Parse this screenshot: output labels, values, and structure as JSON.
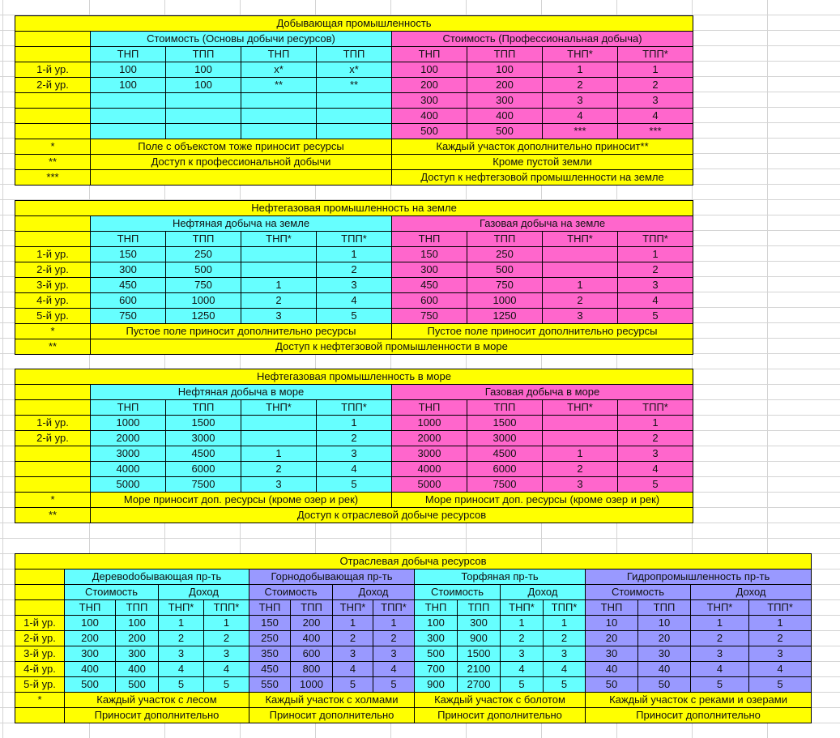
{
  "colors": {
    "yellow": "#ffff00",
    "cyan": "#66ffff",
    "pink": "#ff66cc",
    "purple": "#9999ff"
  },
  "tables": [
    {
      "title": "Добывающая промышленность",
      "row_labels": [
        "1-й ур.",
        "2-й ур.",
        "",
        "",
        ""
      ],
      "sections": [
        {
          "title": "Стоимость (Основы добычи ресурсов)",
          "color": "cyan",
          "columns": [
            "ТНП",
            "ТПП",
            "ТНП",
            "ТПП"
          ],
          "rows": [
            [
              "100",
              "100",
              "x*",
              "x*"
            ],
            [
              "100",
              "100",
              "**",
              "**"
            ],
            [
              "",
              "",
              "",
              ""
            ],
            [
              "",
              "",
              "",
              ""
            ],
            [
              "",
              "",
              "",
              ""
            ]
          ]
        },
        {
          "title": "Стоимость (Профессиональная добыча)",
          "color": "pink",
          "columns": [
            "ТНП",
            "ТПП",
            "ТНП*",
            "ТПП*"
          ],
          "rows": [
            [
              "100",
              "100",
              "1",
              "1"
            ],
            [
              "200",
              "200",
              "2",
              "2"
            ],
            [
              "300",
              "300",
              "3",
              "3"
            ],
            [
              "400",
              "400",
              "4",
              "4"
            ],
            [
              "500",
              "500",
              "***",
              "***"
            ]
          ]
        }
      ],
      "notes": [
        {
          "marker": "*",
          "texts": [
            "Поле с объекстом тоже приносит ресурсы",
            "Каждый участок дополнительно приносит**"
          ]
        },
        {
          "marker": "**",
          "texts": [
            "Доступ к профессиональной добычи",
            "Кроме пустой земли"
          ]
        },
        {
          "marker": "***",
          "texts": [
            "",
            "Доступ к нефтегзовой промышленности на земле"
          ]
        }
      ]
    },
    {
      "title": "Нефтегазовая промышленность на земле",
      "row_labels": [
        "1-й ур.",
        "2-й ур.",
        "3-й ур.",
        "4-й ур.",
        "5-й ур."
      ],
      "sections": [
        {
          "title": "Нефтяная добыча на земле",
          "color": "cyan",
          "columns": [
            "ТНП",
            "ТПП",
            "ТНП*",
            "ТПП*"
          ],
          "rows": [
            [
              "150",
              "250",
              "",
              "1"
            ],
            [
              "300",
              "500",
              "",
              "2"
            ],
            [
              "450",
              "750",
              "1",
              "3"
            ],
            [
              "600",
              "1000",
              "2",
              "4"
            ],
            [
              "750",
              "1250",
              "3",
              "5"
            ]
          ]
        },
        {
          "title": "Газовая добыча на земле",
          "color": "pink",
          "columns": [
            "ТНП",
            "ТПП",
            "ТНП*",
            "ТПП*"
          ],
          "rows": [
            [
              "150",
              "250",
              "",
              "1"
            ],
            [
              "300",
              "500",
              "",
              "2"
            ],
            [
              "450",
              "750",
              "1",
              "3"
            ],
            [
              "600",
              "1000",
              "2",
              "4"
            ],
            [
              "750",
              "1250",
              "3",
              "5"
            ]
          ]
        }
      ],
      "notes": [
        {
          "marker": "*",
          "texts": [
            "Пустое поле приносит дополнительно ресурсы",
            "Пустое поле приносит дополнительно ресурсы"
          ]
        },
        {
          "marker": "**",
          "texts": [
            "Доступ к нефтегзовой промышленности в море"
          ]
        }
      ]
    },
    {
      "title": "Нефтегазовая промышленность в море",
      "row_labels": [
        "1-й ур.",
        "2-й ур.",
        "",
        "",
        ""
      ],
      "sections": [
        {
          "title": "Нефтяная добыча в море",
          "color": "cyan",
          "columns": [
            "ТНП",
            "ТПП",
            "ТНП*",
            "ТПП*"
          ],
          "rows": [
            [
              "1000",
              "1500",
              "",
              "1"
            ],
            [
              "2000",
              "3000",
              "",
              "2"
            ],
            [
              "3000",
              "4500",
              "1",
              "3"
            ],
            [
              "4000",
              "6000",
              "2",
              "4"
            ],
            [
              "5000",
              "7500",
              "3",
              "5"
            ]
          ]
        },
        {
          "title": "Газовая добыча в море",
          "color": "pink",
          "columns": [
            "ТНП",
            "ТПП",
            "ТНП*",
            "ТПП*"
          ],
          "rows": [
            [
              "1000",
              "1500",
              "",
              "1"
            ],
            [
              "2000",
              "3000",
              "",
              "2"
            ],
            [
              "3000",
              "4500",
              "1",
              "3"
            ],
            [
              "4000",
              "6000",
              "2",
              "4"
            ],
            [
              "5000",
              "7500",
              "3",
              "5"
            ]
          ]
        }
      ],
      "notes": [
        {
          "marker": "*",
          "texts": [
            "Море приносит доп. ресурсы (кроме озер и рек)",
            "Море приносит доп. ресурсы (кроме озер и рек)"
          ]
        },
        {
          "marker": "**",
          "texts": [
            "Доступ к отраслевой добыче ресурсов"
          ]
        }
      ]
    },
    {
      "title": "Отраслевая добыча ресурсов",
      "row_labels": [
        "1-й ур.",
        "2-й ур.",
        "3-й ур.",
        "4-й ур.",
        "5-й ур."
      ],
      "sections": [
        {
          "title": "Деревodобывающая пр-ть",
          "color": "cyan",
          "groups": [
            "Стоимость",
            "Доход"
          ],
          "columns": [
            "ТНП",
            "ТПП",
            "ТНП*",
            "ТПП*"
          ],
          "rows": [
            [
              "100",
              "100",
              "1",
              "1"
            ],
            [
              "200",
              "200",
              "2",
              "2"
            ],
            [
              "300",
              "300",
              "3",
              "3"
            ],
            [
              "400",
              "400",
              "4",
              "4"
            ],
            [
              "500",
              "500",
              "5",
              "5"
            ]
          ]
        },
        {
          "title": "Горнодобывающая пр-ть",
          "color": "purple",
          "groups": [
            "Стоимость",
            "Доход"
          ],
          "columns": [
            "ТНП",
            "ТПП",
            "ТНП*",
            "ТПП*"
          ],
          "rows": [
            [
              "150",
              "200",
              "1",
              "1"
            ],
            [
              "250",
              "400",
              "2",
              "2"
            ],
            [
              "350",
              "600",
              "3",
              "3"
            ],
            [
              "450",
              "800",
              "4",
              "4"
            ],
            [
              "550",
              "1000",
              "5",
              "5"
            ]
          ]
        },
        {
          "title": "Торфяная пр-ть",
          "color": "cyan",
          "groups": [
            "Стоимость",
            "Доход"
          ],
          "columns": [
            "ТНП",
            "ТПП",
            "ТНП*",
            "ТПП*"
          ],
          "rows": [
            [
              "100",
              "300",
              "1",
              "1"
            ],
            [
              "300",
              "900",
              "2",
              "2"
            ],
            [
              "500",
              "1500",
              "3",
              "3"
            ],
            [
              "700",
              "2100",
              "4",
              "4"
            ],
            [
              "900",
              "2700",
              "5",
              "5"
            ]
          ]
        },
        {
          "title": "Гидропромышленность пр-ть",
          "color": "purple",
          "groups": [
            "Стоимость",
            "Доход"
          ],
          "columns": [
            "ТНП",
            "ТПП",
            "ТНП*",
            "ТПП*"
          ],
          "rows": [
            [
              "10",
              "10",
              "1",
              "1"
            ],
            [
              "20",
              "20",
              "2",
              "2"
            ],
            [
              "30",
              "30",
              "3",
              "3"
            ],
            [
              "40",
              "40",
              "4",
              "4"
            ],
            [
              "50",
              "50",
              "5",
              "5"
            ]
          ]
        }
      ],
      "notes": [
        {
          "marker": "*",
          "texts": [
            "Каждый участок с лесом",
            "Каждый участок с холмами",
            "Каждый участок с болотом",
            "Каждый участок с реками и озерами"
          ]
        },
        {
          "marker": "",
          "texts": [
            "Приносит дополнительно",
            "Приносит дополнительно",
            "Приносит дополнительно",
            "Приносит дополнительно"
          ]
        }
      ]
    }
  ]
}
